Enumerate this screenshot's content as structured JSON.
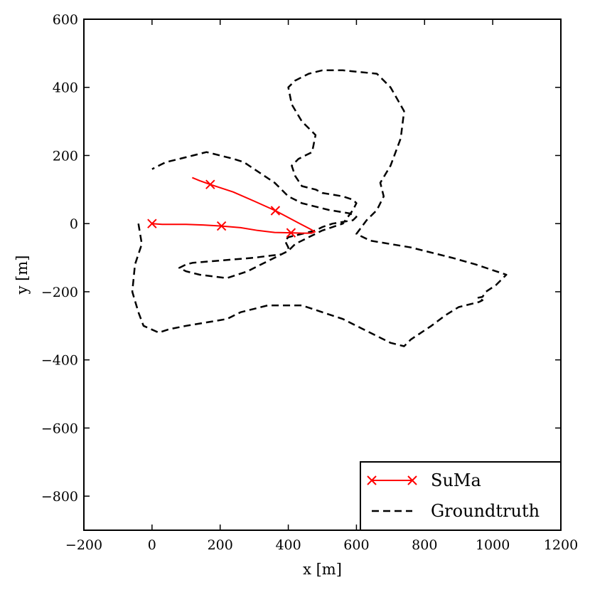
{
  "chart_data": {
    "type": "line",
    "title": "",
    "xlabel": "x [m]",
    "ylabel": "y [m]",
    "xlim": [
      -200,
      1200
    ],
    "ylim": [
      -900,
      600
    ],
    "xticks": [
      -200,
      0,
      200,
      400,
      600,
      800,
      1000,
      1200
    ],
    "yticks": [
      600,
      400,
      200,
      0,
      -200,
      -400,
      -600,
      -800
    ],
    "xtick_labels": [
      "−200",
      "0",
      "200",
      "400",
      "600",
      "800",
      "1000",
      "1200"
    ],
    "ytick_labels": [
      "600",
      "400",
      "200",
      "0",
      "−200",
      "−400",
      "−600",
      "−800"
    ],
    "grid": false,
    "legend_position": "lower-right",
    "series": [
      {
        "name": "SuMa",
        "color": "#ff0000",
        "line_style": "solid",
        "marker": "x",
        "x": [
          0,
          30,
          100,
          150,
          204,
          260,
          310,
          360,
          408,
          440,
          468,
          478,
          466,
          430,
          362,
          300,
          238,
          171,
          140,
          118
        ],
        "y": [
          0,
          -2,
          -2,
          -4,
          -7,
          -12,
          -20,
          -26,
          -27,
          -28,
          -28,
          -24,
          -17,
          2,
          38,
          66,
          93,
          115,
          126,
          135
        ],
        "marker_indices": [
          0,
          4,
          8,
          14,
          17
        ]
      },
      {
        "name": "Groundtruth",
        "color": "#000000",
        "line_style": "dashed",
        "x": [
          -40,
          -30,
          -50,
          -58,
          -40,
          -25,
          20,
          50,
          100,
          160,
          220,
          260,
          300,
          340,
          390,
          440,
          500,
          560,
          600,
          640,
          700,
          740,
          760,
          820,
          860,
          900,
          940,
          960,
          970,
          960,
          955,
          970,
          980,
          1010,
          1040,
          950,
          880,
          760,
          640,
          600,
          630,
          660,
          680,
          670,
          700,
          730,
          740,
          700,
          660,
          560,
          500,
          460,
          420,
          400,
          410,
          440,
          480,
          470,
          430,
          410,
          420,
          440,
          480,
          500,
          560,
          590,
          600,
          590,
          560,
          500,
          460,
          420,
          400,
          360,
          320,
          280,
          250,
          220,
          180,
          140,
          100,
          80,
          100,
          120,
          180,
          240,
          300,
          340,
          380,
          400,
          400,
          395,
          390,
          400,
          440,
          480,
          500,
          530,
          590,
          600,
          580,
          520,
          480,
          440,
          400,
          380,
          360,
          330,
          300,
          270,
          240,
          200,
          160,
          120,
          80,
          40,
          20,
          0
        ],
        "y": [
          0,
          -60,
          -120,
          -200,
          -260,
          -300,
          -320,
          -310,
          -300,
          -290,
          -280,
          -260,
          -250,
          -240,
          -240,
          -240,
          -260,
          -280,
          -300,
          -320,
          -350,
          -360,
          -340,
          -300,
          -270,
          -245,
          -235,
          -230,
          -225,
          -220,
          -218,
          -215,
          -200,
          -180,
          -150,
          -120,
          -100,
          -70,
          -50,
          -30,
          10,
          40,
          80,
          120,
          170,
          250,
          330,
          400,
          440,
          450,
          450,
          440,
          420,
          400,
          350,
          300,
          260,
          210,
          190,
          170,
          140,
          110,
          100,
          90,
          80,
          70,
          60,
          40,
          0,
          -20,
          -40,
          -60,
          -80,
          -100,
          -120,
          -140,
          -150,
          -160,
          -155,
          -150,
          -140,
          -130,
          -120,
          -115,
          -110,
          -105,
          -100,
          -95,
          -90,
          -80,
          -70,
          -60,
          -50,
          -40,
          -30,
          -20,
          -10,
          0,
          10,
          20,
          30,
          40,
          50,
          60,
          80,
          100,
          120,
          140,
          160,
          180,
          190,
          200,
          210,
          200,
          190,
          180,
          170,
          160
        ]
      }
    ]
  }
}
